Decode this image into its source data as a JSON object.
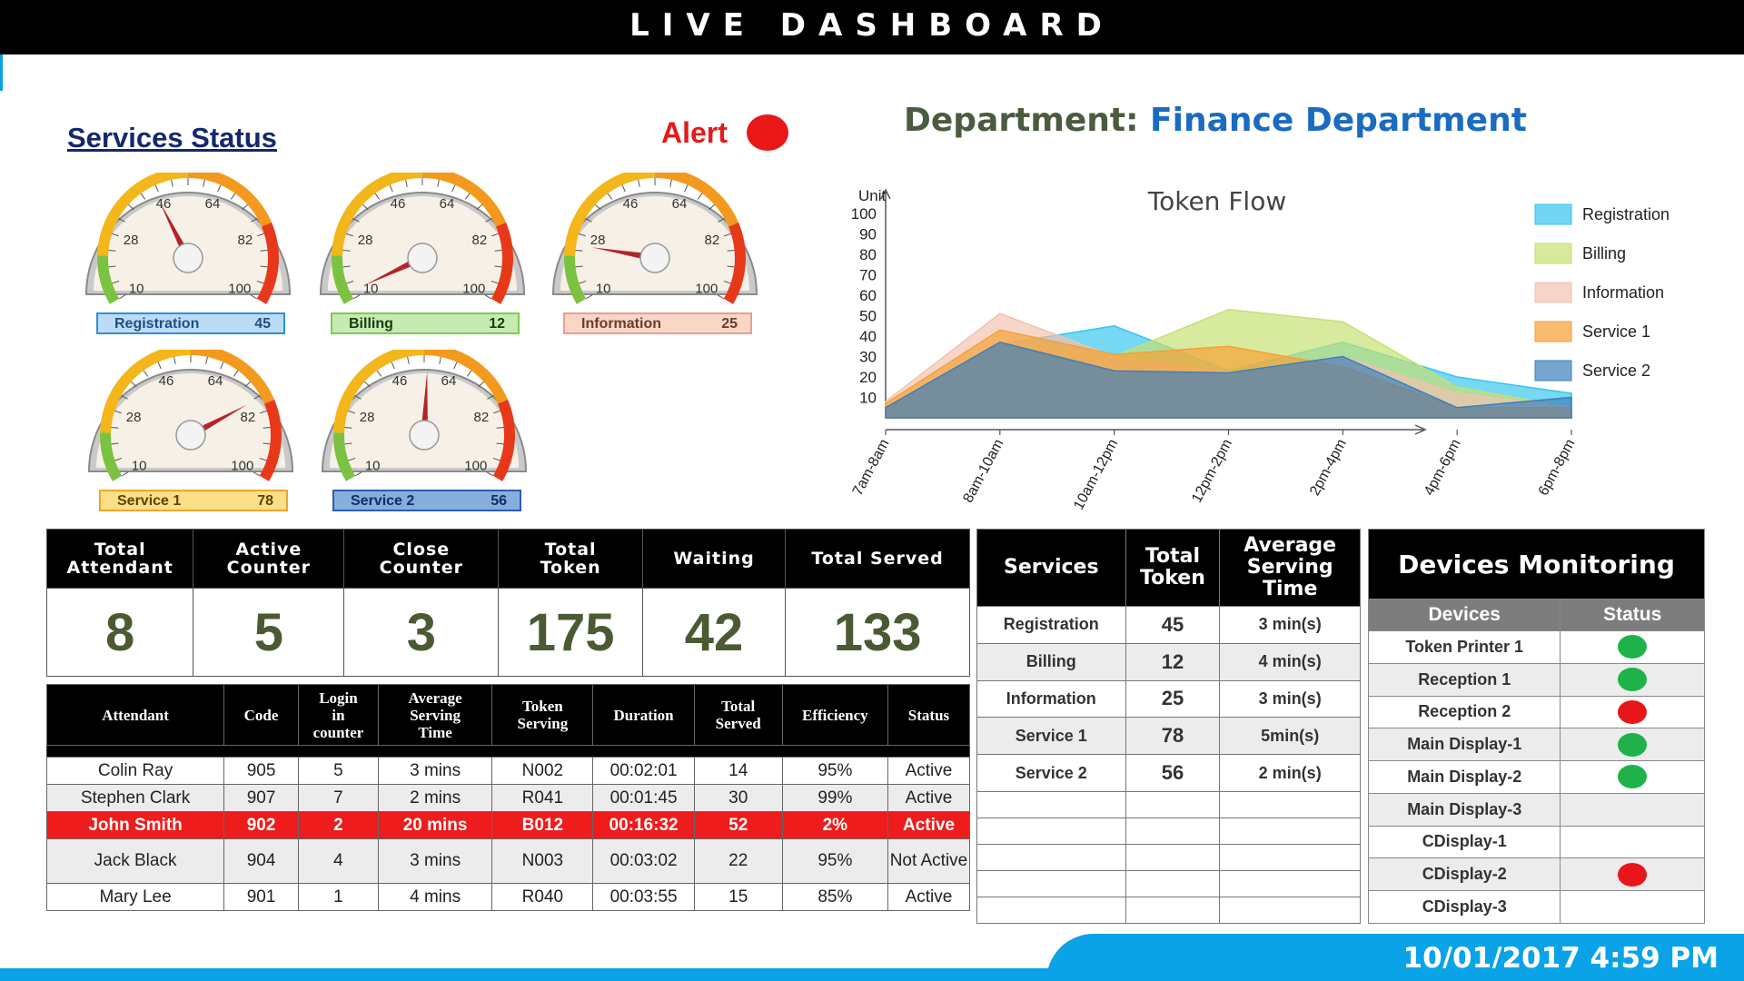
{
  "header": {
    "title": "LIVE DASHBOARD"
  },
  "services_status": {
    "title": "Services Status"
  },
  "alert": {
    "label": "Alert",
    "color": "#ea1717"
  },
  "department": {
    "label": "Department:",
    "name": "Finance Department"
  },
  "gauge_ticks": [
    "10",
    "28",
    "46",
    "64",
    "82",
    "100"
  ],
  "gauges": [
    {
      "name": "Registration",
      "value": 45,
      "label_bg": "#bcdcf5",
      "label_border": "#2f8fd8",
      "label_color": "#1d4f86"
    },
    {
      "name": "Billing",
      "value": 12,
      "label_bg": "#c6eab1",
      "label_border": "#7ccb52",
      "label_color": "#1a3b10"
    },
    {
      "name": "Information",
      "value": 25,
      "label_bg": "#f9d6c6",
      "label_border": "#e8a08c",
      "label_color": "#6b3b2c"
    },
    {
      "name": "Service 1",
      "value": 78,
      "label_bg": "#fbdf86",
      "label_border": "#eba62c",
      "label_color": "#5b4200"
    },
    {
      "name": "Service 2",
      "value": 56,
      "label_bg": "#86aedb",
      "label_border": "#2b5db2",
      "label_color": "#102d66"
    }
  ],
  "chart_data": {
    "type": "area",
    "title": "Token Flow",
    "ylabel": "Unit",
    "xlabel": "",
    "ylim": [
      0,
      100
    ],
    "yticks": [
      10,
      20,
      30,
      40,
      50,
      60,
      70,
      80,
      90,
      100
    ],
    "legend_position": "right",
    "categories": [
      "7am-8am",
      "8am-10am",
      "10am-12pm",
      "12pm-2pm",
      "2pm-4pm",
      "4pm-6pm",
      "6pm-8pm"
    ],
    "series": [
      {
        "name": "Registration",
        "color": "#35c5ee",
        "values": [
          5,
          36,
          45,
          23,
          37,
          20,
          12
        ]
      },
      {
        "name": "Billing",
        "color": "#c6e070",
        "values": [
          5,
          37,
          30,
          53,
          47,
          15,
          5
        ]
      },
      {
        "name": "Information",
        "color": "#f2c2af",
        "values": [
          8,
          51,
          30,
          22,
          30,
          12,
          5
        ]
      },
      {
        "name": "Service 1",
        "color": "#f6a033",
        "values": [
          7,
          43,
          31,
          35,
          25,
          5,
          5
        ]
      },
      {
        "name": "Service 2",
        "color": "#3c7fbd",
        "values": [
          5,
          37,
          23,
          22,
          30,
          5,
          10
        ]
      }
    ]
  },
  "summary": {
    "headers": [
      [
        "Total",
        "Attendant"
      ],
      [
        "Active",
        "Counter"
      ],
      [
        "Close",
        "Counter"
      ],
      [
        "Total",
        "Token"
      ],
      [
        "Waiting",
        ""
      ],
      [
        "Total Served",
        ""
      ]
    ],
    "values": [
      "8",
      "5",
      "3",
      "175",
      "42",
      "133"
    ]
  },
  "attendants": {
    "headers": [
      [
        "Attendant"
      ],
      [
        "Code"
      ],
      [
        "Login",
        "in",
        "counter"
      ],
      [
        "Average",
        "Serving",
        "Time"
      ],
      [
        "Token",
        "Serving"
      ],
      [
        "Duration"
      ],
      [
        "Total",
        "Served"
      ],
      [
        "Efficiency"
      ],
      [
        "Status"
      ]
    ],
    "rows": [
      {
        "cells": [
          "Colin Ray",
          "905",
          "5",
          "3 mins",
          "N002",
          "00:02:01",
          "14",
          "95%",
          "Active"
        ],
        "style": ""
      },
      {
        "cells": [
          "Stephen Clark",
          "907",
          "7",
          "2 mins",
          "R041",
          "00:01:45",
          "30",
          "99%",
          "Active"
        ],
        "style": "alt"
      },
      {
        "cells": [
          "John Smith",
          "902",
          "2",
          "20 mins",
          "B012",
          "00:16:32",
          "52",
          "2%",
          "Active"
        ],
        "style": "red"
      },
      {
        "cells": [
          "Jack Black",
          "904",
          "4",
          "3 mins",
          "N003",
          "00:03:02",
          "22",
          "95%",
          "Not Active"
        ],
        "style": "alt tall"
      },
      {
        "cells": [
          "Mary Lee",
          "901",
          "1",
          "4 mins",
          "R040",
          "00:03:55",
          "15",
          "85%",
          "Active"
        ],
        "style": ""
      }
    ]
  },
  "services_table": {
    "headers": [
      [
        "Services"
      ],
      [
        "Total",
        "Token"
      ],
      [
        "Average",
        "Serving",
        "Time"
      ]
    ],
    "rows": [
      {
        "cells": [
          "Registration",
          "45",
          "3 min(s)"
        ]
      },
      {
        "cells": [
          "Billing",
          "12",
          "4 min(s)"
        ]
      },
      {
        "cells": [
          "Information",
          "25",
          "3 min(s)"
        ]
      },
      {
        "cells": [
          "Service 1",
          "78",
          "5min(s)"
        ]
      },
      {
        "cells": [
          "Service 2",
          "56",
          "2 min(s)"
        ]
      }
    ],
    "empty_rows": 5
  },
  "devices": {
    "title": "Devices Monitoring",
    "headers": [
      "Devices",
      "Status"
    ],
    "rows": [
      {
        "name": "Token Printer 1",
        "status": "green"
      },
      {
        "name": "Reception 1",
        "status": "green"
      },
      {
        "name": "Reception 2",
        "status": "red"
      },
      {
        "name": "Main Display-1",
        "status": "green"
      },
      {
        "name": "Main Display-2",
        "status": "green"
      },
      {
        "name": "Main Display-3",
        "status": ""
      },
      {
        "name": "CDisplay-1",
        "status": ""
      },
      {
        "name": "CDisplay-2",
        "status": "red"
      },
      {
        "name": "CDisplay-3",
        "status": ""
      }
    ]
  },
  "datetime": "10/01/2017 4:59 PM"
}
